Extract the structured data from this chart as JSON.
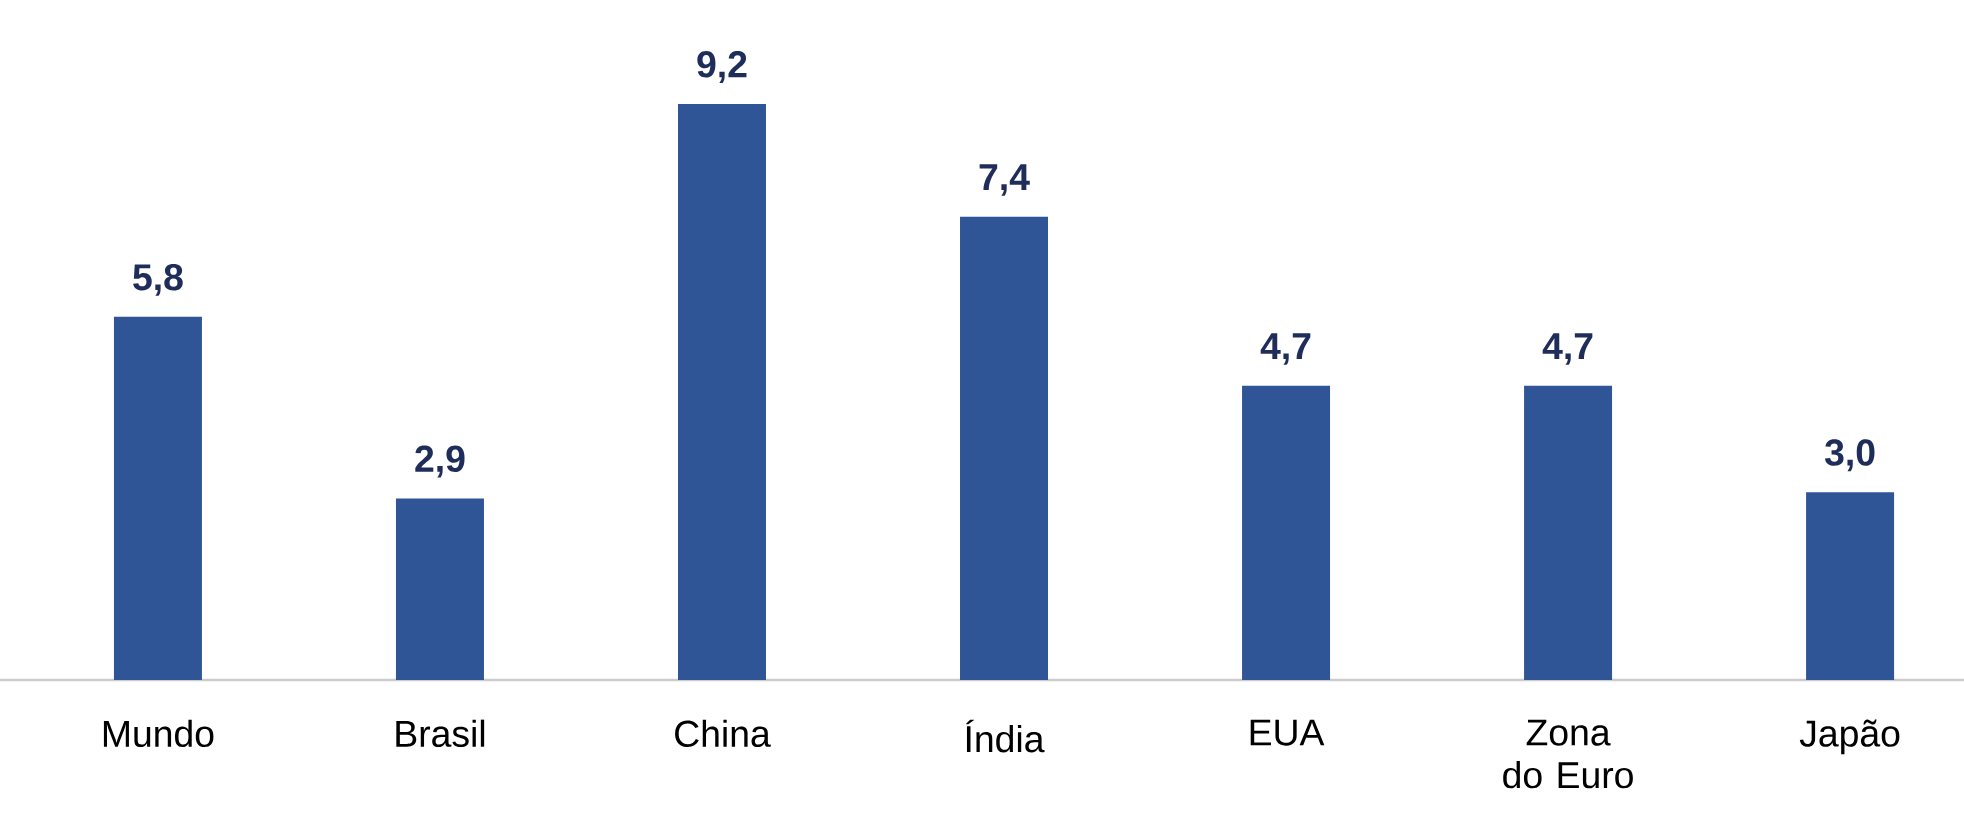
{
  "chart_data": {
    "type": "bar",
    "categories": [
      "Mundo",
      "Brasil",
      "China",
      "Índia",
      "EUA",
      "Zona do Euro",
      "Japão"
    ],
    "values": [
      5.8,
      2.9,
      9.2,
      7.4,
      4.7,
      4.7,
      3.0
    ],
    "value_labels": [
      "5,8",
      "2,9",
      "9,2",
      "7,4",
      "4,7",
      "4,7",
      "3,0"
    ],
    "color": "#2f5597"
  }
}
